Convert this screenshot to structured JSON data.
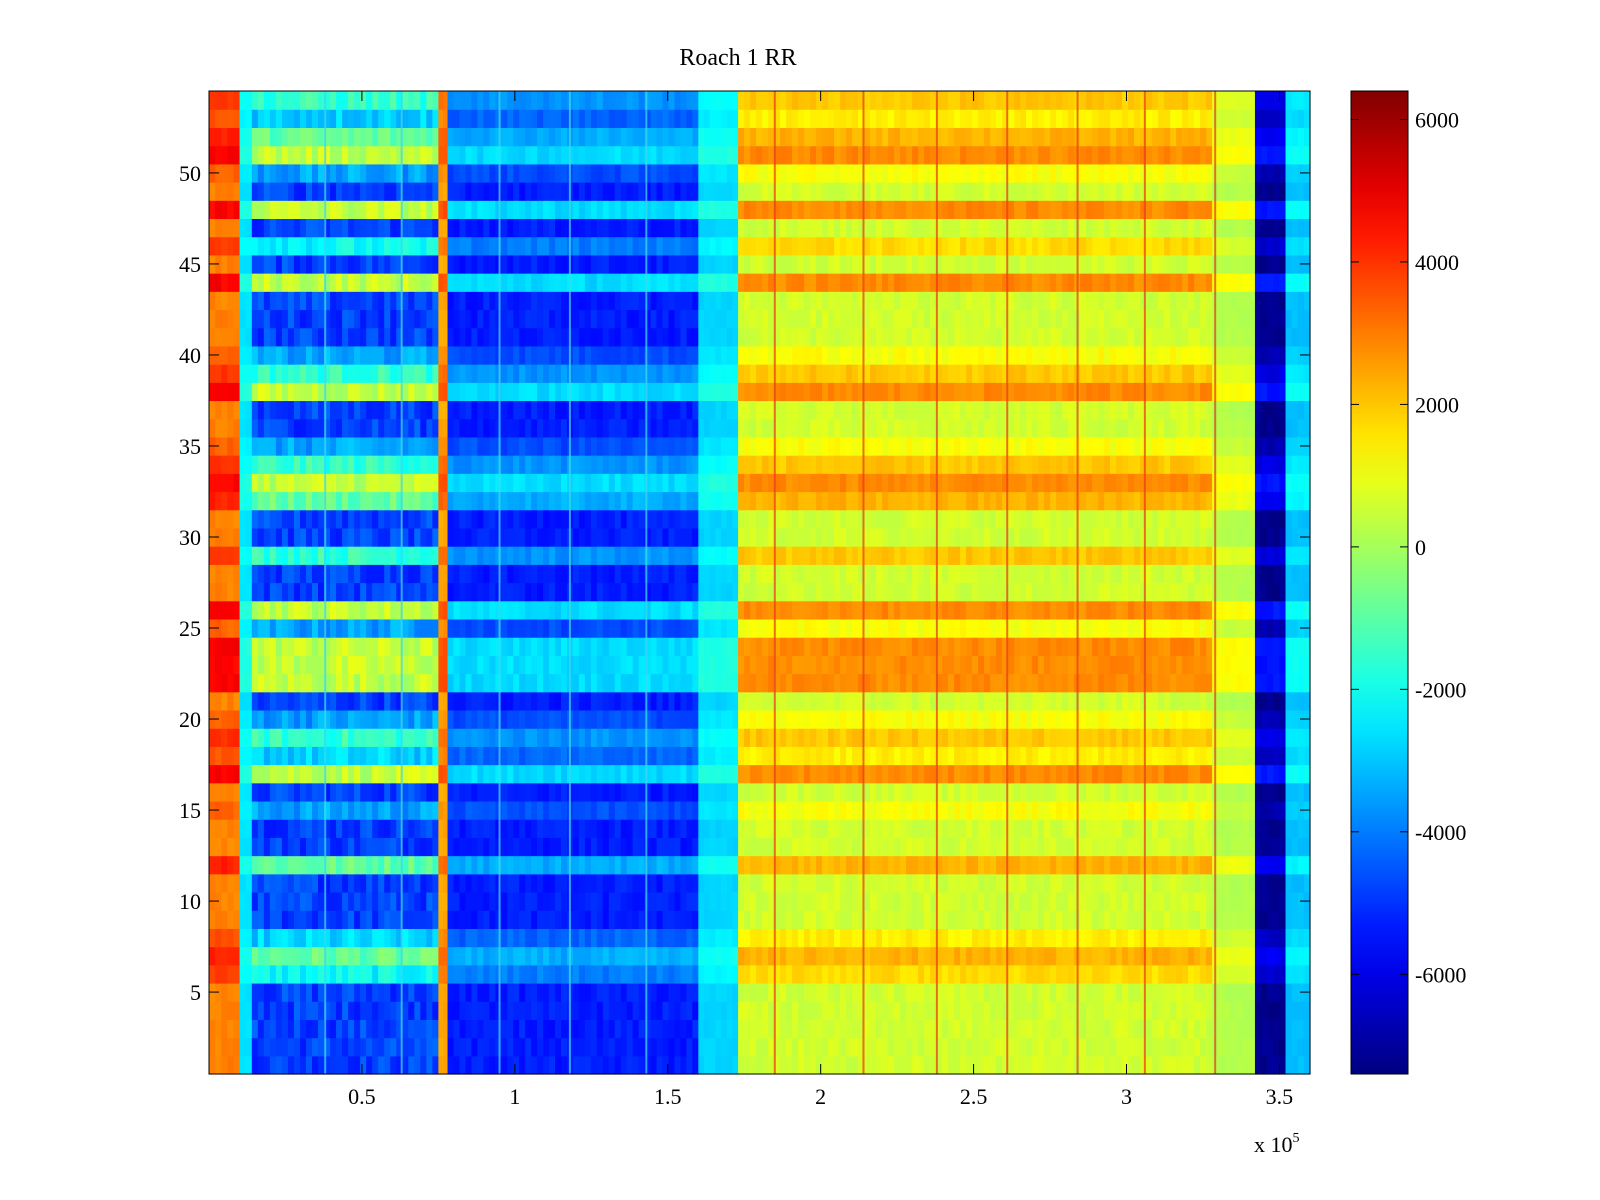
{
  "chart_data": {
    "type": "heatmap",
    "title": "Roach 1 RR",
    "xlabel": "",
    "ylabel": "",
    "x_multiplier_label": "x 10^5",
    "x_multiplier": {
      "base": "x 10",
      "exponent": "5"
    },
    "xlim": [
      0,
      3.6
    ],
    "ylim": [
      0.5,
      54.5
    ],
    "xticks": [
      0.5,
      1,
      1.5,
      2,
      2.5,
      3,
      3.5
    ],
    "xtick_labels": [
      "0.5",
      "1",
      "1.5",
      "2",
      "2.5",
      "3",
      "3.5"
    ],
    "yticks": [
      5,
      10,
      15,
      20,
      25,
      30,
      35,
      40,
      45,
      50
    ],
    "ytick_labels": [
      "5",
      "10",
      "15",
      "20",
      "25",
      "30",
      "35",
      "40",
      "45",
      "50"
    ],
    "rows": 54,
    "colormap": "jet",
    "clim": [
      -7400,
      6400
    ],
    "colorbar": {
      "ticks": [
        -6000,
        -4000,
        -2000,
        0,
        2000,
        4000,
        6000
      ],
      "tick_labels": [
        "-6000",
        "-4000",
        "-2000",
        "0",
        "2000",
        "4000",
        "6000"
      ]
    },
    "column_segments": [
      {
        "x_start": 0,
        "x_end": 0.1,
        "base": 3800,
        "vary": 900
      },
      {
        "x_start": 0.1,
        "x_end": 0.14,
        "base": -2200,
        "vary": 400
      },
      {
        "x_start": 0.14,
        "x_end": 0.75,
        "base": -2200,
        "vary": 2600
      },
      {
        "x_start": 0.75,
        "x_end": 0.78,
        "base": 3000,
        "vary": 600
      },
      {
        "x_start": 0.78,
        "x_end": 1.6,
        "base": -4000,
        "vary": 1300
      },
      {
        "x_start": 1.6,
        "x_end": 1.73,
        "base": -2300,
        "vary": 500
      },
      {
        "x_start": 1.73,
        "x_end": 3.28,
        "base": 1700,
        "vary": 1100
      },
      {
        "x_start": 3.28,
        "x_end": 3.42,
        "base": 700,
        "vary": 500
      },
      {
        "x_start": 3.42,
        "x_end": 3.52,
        "base": -6300,
        "vary": 900
      },
      {
        "x_start": 3.52,
        "x_end": 3.6,
        "base": -2600,
        "vary": 500
      }
    ],
    "row_levels": {
      "high_rows": [
        17,
        22,
        23,
        24,
        26,
        33,
        38,
        44,
        48,
        51
      ],
      "low_rows": [
        1,
        2,
        3,
        4,
        5,
        9,
        10,
        11,
        13,
        14,
        16,
        21,
        27,
        28,
        30,
        31,
        36,
        37,
        41,
        42,
        43,
        45,
        47,
        49
      ]
    },
    "vertical_streaks_x": [
      0.38,
      0.63,
      0.95,
      1.18,
      1.43,
      1.85,
      2.14,
      2.38,
      2.61,
      2.84,
      3.06,
      3.29
    ]
  }
}
